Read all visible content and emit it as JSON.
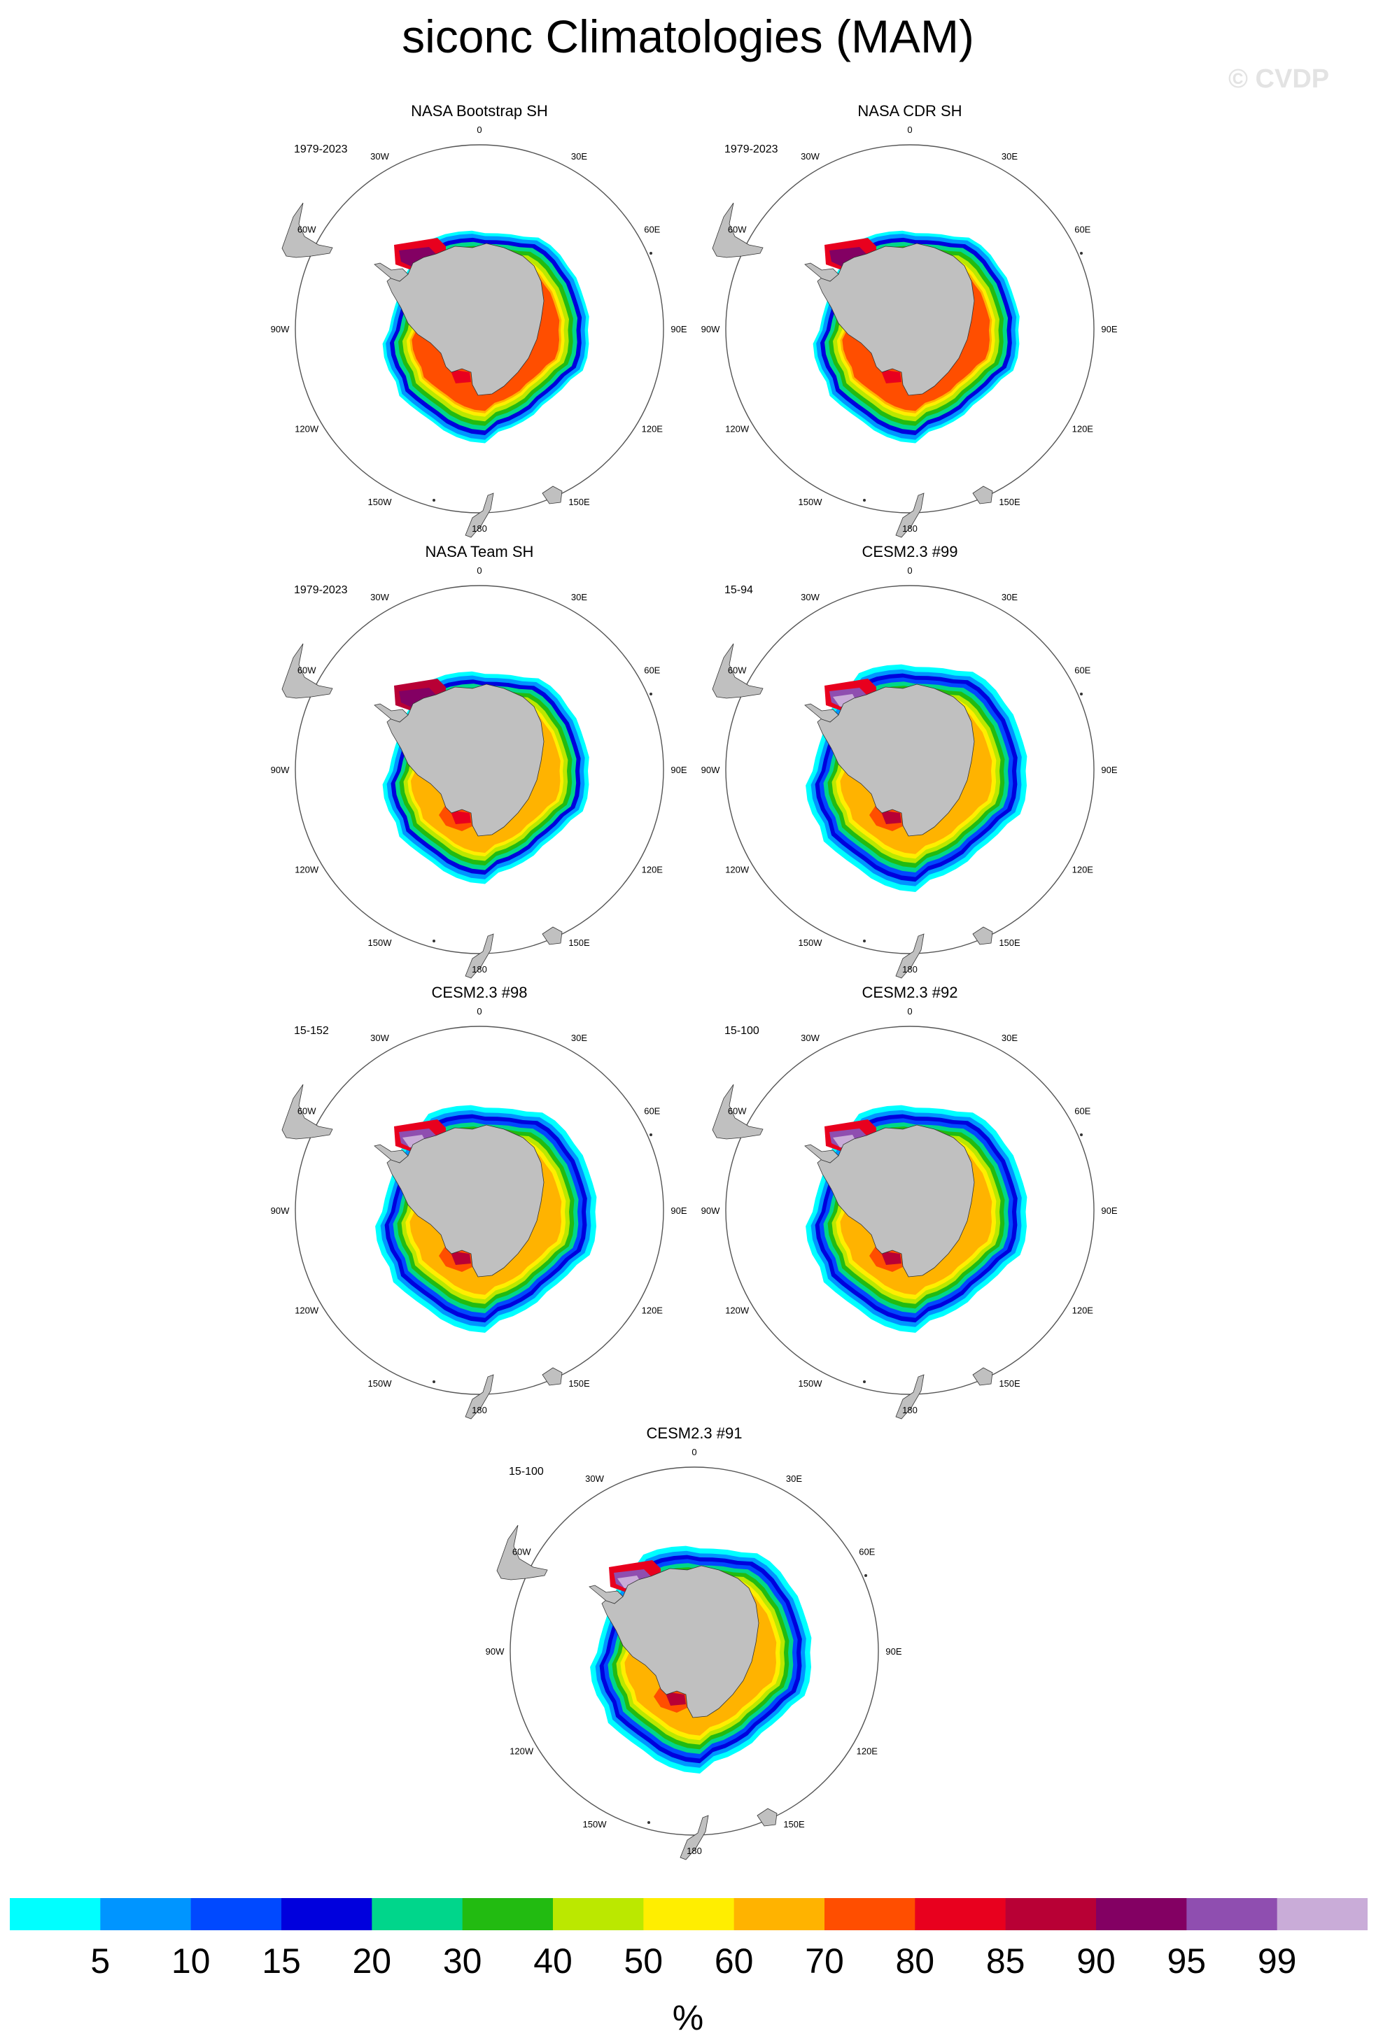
{
  "title": "siconc Climatologies (MAM)",
  "watermark": "© CVDP",
  "panels": [
    {
      "title": "NASA Bootstrap SH",
      "period": "1979-2023",
      "pattern": "obs"
    },
    {
      "title": "NASA CDR SH",
      "period": "1979-2023",
      "pattern": "obs"
    },
    {
      "title": "NASA Team SH",
      "period": "1979-2023",
      "pattern": "team"
    },
    {
      "title": "CESM2.3 #99",
      "period": "15-94",
      "pattern": "model"
    },
    {
      "title": "CESM2.3 #98",
      "period": "15-152",
      "pattern": "model"
    },
    {
      "title": "CESM2.3 #92",
      "period": "15-100",
      "pattern": "model"
    },
    {
      "title": "CESM2.3 #91",
      "period": "15-100",
      "pattern": "model"
    }
  ],
  "longitude_labels": [
    "0",
    "30E",
    "60E",
    "90E",
    "120E",
    "150E",
    "180",
    "150W",
    "120W",
    "90W",
    "60W",
    "30W"
  ],
  "colorbar": {
    "units": "%",
    "levels": [
      "5",
      "10",
      "15",
      "20",
      "30",
      "40",
      "50",
      "60",
      "70",
      "80",
      "85",
      "90",
      "95",
      "99"
    ],
    "colors": [
      "#00ffff",
      "#0095ff",
      "#0049ff",
      "#0000dd",
      "#00d68b",
      "#22bb11",
      "#bbe800",
      "#ffee00",
      "#ffb300",
      "#ff4e00",
      "#e8001e",
      "#b80035",
      "#830063",
      "#8f4eb0",
      "#c9acd8"
    ]
  },
  "colors": {
    "land": "#c0c0c0",
    "ocean": "#ffffff",
    "outline": "#000000"
  }
}
